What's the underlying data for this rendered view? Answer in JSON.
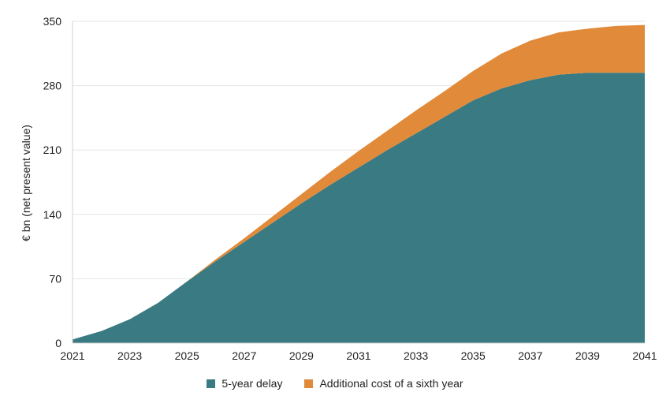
{
  "chart_data": {
    "type": "area",
    "stacked": true,
    "ylabel": "€ bn (net present value)",
    "xlabel": "",
    "xlim": [
      2021,
      2041
    ],
    "ylim": [
      0,
      350
    ],
    "yticks": [
      0,
      70,
      140,
      210,
      280,
      350
    ],
    "xticks": [
      2021,
      2023,
      2025,
      2027,
      2029,
      2031,
      2033,
      2035,
      2037,
      2039,
      2041
    ],
    "grid": "horizontal",
    "legend_position": "bottom",
    "x": [
      2021,
      2022,
      2023,
      2024,
      2025,
      2026,
      2027,
      2028,
      2029,
      2030,
      2031,
      2032,
      2033,
      2034,
      2035,
      2036,
      2037,
      2038,
      2039,
      2040,
      2041
    ],
    "series": [
      {
        "name": "5-year delay",
        "color": "#3a7a82",
        "values": [
          4,
          13,
          26,
          44,
          67,
          89,
          110,
          131,
          152,
          172,
          191,
          210,
          228,
          246,
          264,
          277,
          286,
          292,
          294,
          294,
          294
        ]
      },
      {
        "name": "Additional cost of a sixth year",
        "color": "#e08a3a",
        "values": [
          0,
          0,
          0,
          0,
          0,
          2,
          4,
          7,
          10,
          14,
          18,
          21,
          25,
          28,
          32,
          38,
          43,
          46,
          48,
          51,
          52
        ]
      }
    ]
  }
}
